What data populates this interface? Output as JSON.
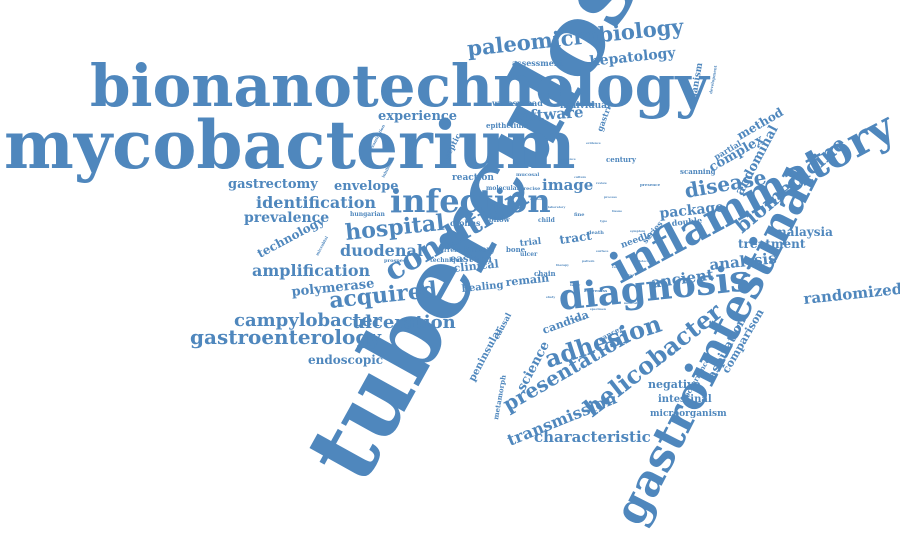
{
  "color": "#4f87bd",
  "words": [
    {
      "text": "tuberculosis"
    },
    {
      "text": "mycobacterium"
    },
    {
      "text": "bionanotechnology"
    },
    {
      "text": "gastrointestinal"
    },
    {
      "text": "inflammatory"
    },
    {
      "text": "diagnosis"
    },
    {
      "text": "infection"
    },
    {
      "text": "condition"
    },
    {
      "text": "paleomicrobiology"
    },
    {
      "text": "helicobacter"
    },
    {
      "text": "adhesion"
    },
    {
      "text": "acquired"
    },
    {
      "text": "hospital"
    },
    {
      "text": "presentation"
    },
    {
      "text": "biomedicine"
    },
    {
      "text": "disease"
    },
    {
      "text": "gastroenterology"
    },
    {
      "text": "campylobacter"
    },
    {
      "text": "ulceration"
    },
    {
      "text": "amplification"
    },
    {
      "text": "identification"
    },
    {
      "text": "duodenal"
    },
    {
      "text": "transmission"
    },
    {
      "text": "characteristic"
    },
    {
      "text": "software"
    },
    {
      "text": "image"
    },
    {
      "text": "ancient"
    },
    {
      "text": "randomized"
    },
    {
      "text": "analysis"
    },
    {
      "text": "package"
    },
    {
      "text": "prevalence"
    },
    {
      "text": "gastrectomy"
    },
    {
      "text": "envelope"
    },
    {
      "text": "experience"
    },
    {
      "text": "hepatology"
    },
    {
      "text": "polymerase"
    },
    {
      "text": "endoscopic"
    },
    {
      "text": "science"
    },
    {
      "text": "abdominal"
    },
    {
      "text": "complex"
    },
    {
      "text": "method"
    },
    {
      "text": "treatment"
    },
    {
      "text": "malaysia"
    },
    {
      "text": "technology"
    },
    {
      "text": "aspiration"
    },
    {
      "text": "comparison"
    },
    {
      "text": "tract"
    },
    {
      "text": "clinical"
    },
    {
      "text": "candida"
    },
    {
      "text": "remain"
    },
    {
      "text": "eastern"
    },
    {
      "text": "peninsular"
    },
    {
      "text": "healing"
    },
    {
      "text": "negative"
    },
    {
      "text": "intestinal"
    },
    {
      "text": "microorganism"
    },
    {
      "text": "organism"
    },
    {
      "text": "reaction"
    },
    {
      "text": "individual"
    },
    {
      "text": "widespread"
    },
    {
      "text": "assessment"
    },
    {
      "text": "crohns"
    },
    {
      "text": "history"
    },
    {
      "text": "metamorph"
    },
    {
      "text": "occurrence"
    },
    {
      "text": "needle"
    },
    {
      "text": "double"
    },
    {
      "text": "series"
    },
    {
      "text": "partial"
    },
    {
      "text": "scanning"
    },
    {
      "text": "century"
    },
    {
      "text": "epithelium"
    },
    {
      "text": "gastric"
    },
    {
      "text": "peptic"
    },
    {
      "text": "hungarian"
    },
    {
      "text": "trial"
    },
    {
      "text": "cancer"
    },
    {
      "text": "causal"
    },
    {
      "text": "follow"
    },
    {
      "text": "chain"
    },
    {
      "text": "molecular"
    },
    {
      "text": "current"
    },
    {
      "text": "technique"
    },
    {
      "text": "prospect"
    },
    {
      "text": "bone"
    },
    {
      "text": "child"
    },
    {
      "text": "ulcer"
    },
    {
      "text": "fine"
    },
    {
      "text": "death"
    },
    {
      "text": "mucosal"
    },
    {
      "text": "precise"
    },
    {
      "text": "awareness"
    },
    {
      "text": "inhibition"
    },
    {
      "text": "microbial"
    },
    {
      "text": "examination"
    },
    {
      "text": "presence"
    },
    {
      "text": "development"
    },
    {
      "text": "surface"
    },
    {
      "text": "type"
    },
    {
      "text": "medical"
    },
    {
      "text": "factor"
    },
    {
      "text": "result"
    },
    {
      "text": "sequence"
    },
    {
      "text": "laboratory"
    },
    {
      "text": "pattern"
    },
    {
      "text": "process"
    },
    {
      "text": "symptom"
    },
    {
      "text": "culture"
    },
    {
      "text": "therapy"
    },
    {
      "text": "evidence"
    },
    {
      "text": "control"
    },
    {
      "text": "research"
    },
    {
      "text": "antibody"
    },
    {
      "text": "specimen"
    },
    {
      "text": "tissue"
    },
    {
      "text": "study"
    },
    {
      "text": "review"
    },
    {
      "text": "detection"
    }
  ]
}
